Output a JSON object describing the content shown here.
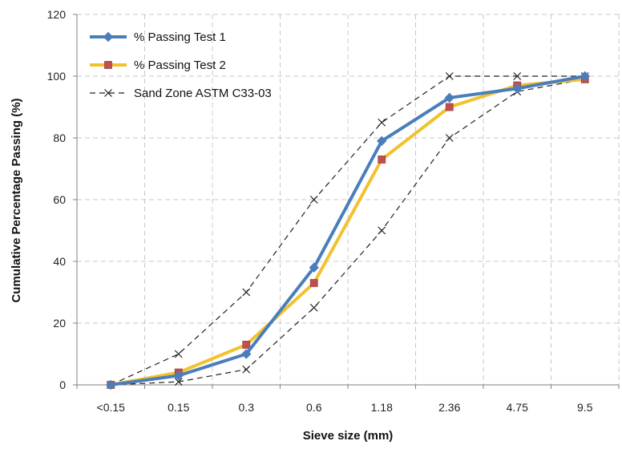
{
  "chart_data": {
    "type": "line",
    "xlabel": "Sieve size (mm)",
    "ylabel": "Cumulative Percentage Passing (%)",
    "categories": [
      "<0.15",
      "0.15",
      "0.3",
      "0.6",
      "1.18",
      "2.36",
      "4.75",
      "9.5"
    ],
    "ylim": [
      0,
      120
    ],
    "yticks": [
      "0",
      "20",
      "40",
      "60",
      "80",
      "100",
      "120"
    ],
    "grid": true,
    "legend_position": "top-left",
    "series": [
      {
        "name": "% Passing Test 1",
        "marker": "diamond",
        "color": "#4a7ebb",
        "values": [
          0,
          3,
          10,
          38,
          79,
          93,
          96,
          100
        ]
      },
      {
        "name": "% Passing Test 2",
        "marker": "square",
        "color": "#f2c12e",
        "marker_color": "#c0504d",
        "values": [
          0,
          4,
          13,
          33,
          73,
          90,
          97,
          99
        ]
      },
      {
        "name": "Sand Zone ASTM C33-03",
        "marker": "x",
        "color": "#222222",
        "dash": true,
        "values": [
          0,
          10,
          30,
          60,
          85,
          100,
          100,
          100
        ]
      },
      {
        "name": "",
        "marker": "x",
        "color": "#222222",
        "dash": true,
        "values": [
          0,
          1,
          5,
          25,
          50,
          80,
          95,
          99
        ]
      }
    ]
  }
}
